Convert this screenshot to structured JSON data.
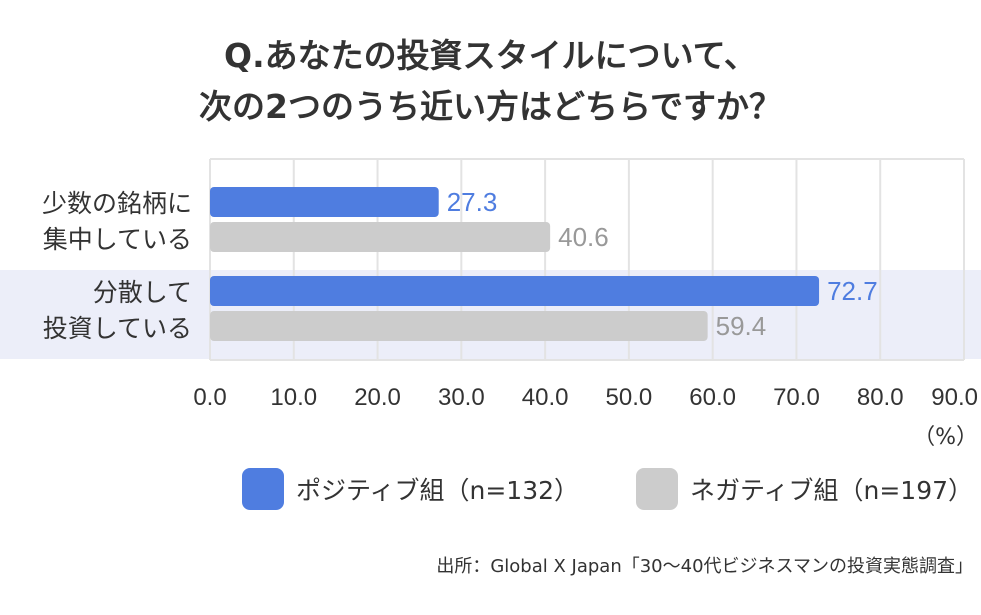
{
  "title_lines": [
    "Q.あなたの投資スタイルについて、",
    "次の2つのうち近い方はどちらですか？"
  ],
  "chart_data": {
    "type": "bar",
    "orientation": "horizontal",
    "categories": [
      [
        "少数の銘柄に",
        "集中している"
      ],
      [
        "分散して",
        "投資している"
      ]
    ],
    "series": [
      {
        "name": "ポジティブ組（n=132）",
        "values": [
          27.3,
          72.7
        ],
        "color": "#4f7de0",
        "label_color": "#4f7de0"
      },
      {
        "name": "ネガティブ組（n=197）",
        "values": [
          40.6,
          59.4
        ],
        "color": "#cccccc",
        "label_color": "#999999"
      }
    ],
    "xlim": [
      0,
      90
    ],
    "xticks": [
      "0.0",
      "10.0",
      "20.0",
      "30.0",
      "40.0",
      "50.0",
      "60.0",
      "70.0",
      "80.0",
      "90.0"
    ],
    "xunit": "（%）",
    "grid": true,
    "highlight_category_index": 1,
    "highlight_color": "#eceef9",
    "legend_position": "bottom"
  },
  "source": "出所：Global X Japan「30〜40代ビジネスマンの投資実態調査」"
}
